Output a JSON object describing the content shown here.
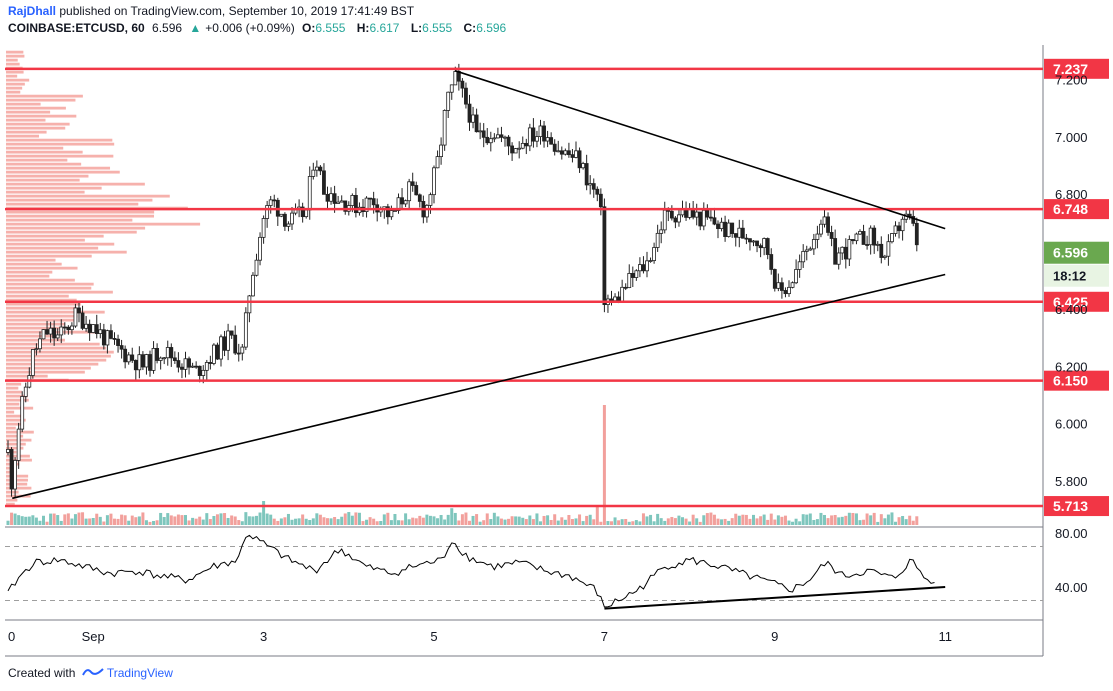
{
  "header": {
    "author": "RajDhall",
    "published": "published on TradingView.com, September 10, 2019 17:41:49 BST",
    "symbol": "COINBASE:ETCUSD, 60",
    "last": "6.596",
    "change_arrow": "▲",
    "change": "+0.006 (+0.09%)",
    "o_label": "O:",
    "o_value": "6.555",
    "h_label": "H:",
    "h_value": "6.617",
    "l_label": "L:",
    "l_value": "6.555",
    "c_label": "C:",
    "c_value": "6.596"
  },
  "footer": {
    "created_with": "Created with",
    "brand": "TradingView",
    "logo_icon": "tradingview-logo-icon"
  },
  "colors": {
    "up": "#26a69a",
    "down": "#ef5350",
    "level": "#f23645",
    "trend": "#000000",
    "last_tag": "#6aa84f",
    "volume_profile": "#f4a39e"
  },
  "chart_data": {
    "type": "candlestick",
    "symbol": "COINBASE:ETCUSD",
    "interval": "60",
    "ylim": [
      5.64,
      7.32
    ],
    "price_ticks": [
      "7.200",
      "7.000",
      "6.800",
      "6.400",
      "6.200",
      "6.000",
      "5.800"
    ],
    "x_ticks": [
      {
        "label": "0",
        "x": 0
      },
      {
        "label": "Sep",
        "x": 1
      },
      {
        "label": "3",
        "x": 3
      },
      {
        "label": "5",
        "x": 5
      },
      {
        "label": "7",
        "x": 7
      },
      {
        "label": "9",
        "x": 9
      },
      {
        "label": "11",
        "x": 11
      }
    ],
    "levels": [
      {
        "value": 7.237,
        "label": "7.237"
      },
      {
        "value": 6.748,
        "label": "6.748"
      },
      {
        "value": 6.425,
        "label": "6.425"
      },
      {
        "value": 6.15,
        "label": "6.150"
      },
      {
        "value": 5.713,
        "label": "5.713"
      }
    ],
    "last_price": {
      "value": 6.596,
      "label": "6.596",
      "countdown": "18:12"
    },
    "trendlines": [
      {
        "name": "upper",
        "from": [
          5.25,
          7.23
        ],
        "to": [
          11.0,
          6.68
        ]
      },
      {
        "name": "lower",
        "from": [
          0.05,
          5.74
        ],
        "to": [
          11.0,
          6.52
        ]
      }
    ],
    "price_path": [
      [
        0.0,
        5.9
      ],
      [
        0.05,
        5.78
      ],
      [
        0.1,
        5.95
      ],
      [
        0.2,
        6.12
      ],
      [
        0.3,
        6.25
      ],
      [
        0.45,
        6.32
      ],
      [
        0.6,
        6.3
      ],
      [
        0.8,
        6.38
      ],
      [
        1.0,
        6.34
      ],
      [
        1.2,
        6.28
      ],
      [
        1.4,
        6.24
      ],
      [
        1.6,
        6.2
      ],
      [
        1.8,
        6.26
      ],
      [
        2.0,
        6.22
      ],
      [
        2.2,
        6.18
      ],
      [
        2.4,
        6.24
      ],
      [
        2.6,
        6.3
      ],
      [
        2.75,
        6.25
      ],
      [
        2.85,
        6.5
      ],
      [
        3.0,
        6.72
      ],
      [
        3.1,
        6.78
      ],
      [
        3.3,
        6.7
      ],
      [
        3.5,
        6.74
      ],
      [
        3.6,
        6.95
      ],
      [
        3.7,
        6.82
      ],
      [
        3.9,
        6.78
      ],
      [
        4.1,
        6.76
      ],
      [
        4.3,
        6.78
      ],
      [
        4.5,
        6.72
      ],
      [
        4.7,
        6.82
      ],
      [
        4.9,
        6.74
      ],
      [
        5.05,
        6.92
      ],
      [
        5.15,
        7.12
      ],
      [
        5.25,
        7.2
      ],
      [
        5.4,
        7.1
      ],
      [
        5.5,
        7.0
      ],
      [
        5.7,
        7.02
      ],
      [
        5.9,
        6.96
      ],
      [
        6.1,
        7.0
      ],
      [
        6.3,
        7.02
      ],
      [
        6.5,
        6.95
      ],
      [
        6.7,
        6.92
      ],
      [
        6.85,
        6.82
      ],
      [
        6.95,
        6.78
      ],
      [
        7.0,
        6.44
      ],
      [
        7.1,
        6.42
      ],
      [
        7.3,
        6.5
      ],
      [
        7.5,
        6.56
      ],
      [
        7.7,
        6.72
      ],
      [
        7.9,
        6.74
      ],
      [
        8.1,
        6.72
      ],
      [
        8.3,
        6.7
      ],
      [
        8.5,
        6.66
      ],
      [
        8.7,
        6.66
      ],
      [
        8.9,
        6.62
      ],
      [
        9.05,
        6.45
      ],
      [
        9.2,
        6.5
      ],
      [
        9.4,
        6.62
      ],
      [
        9.55,
        6.72
      ],
      [
        9.7,
        6.58
      ],
      [
        9.9,
        6.62
      ],
      [
        10.1,
        6.66
      ],
      [
        10.3,
        6.58
      ],
      [
        10.5,
        6.72
      ],
      [
        10.6,
        6.7
      ],
      [
        10.7,
        6.6
      ]
    ],
    "volume_spikes": [
      {
        "x": 7.0,
        "value": 1.0
      },
      {
        "x": 6.9,
        "value": 0.15
      },
      {
        "x": 3.0,
        "value": 0.2
      },
      {
        "x": 5.2,
        "value": 0.14
      }
    ],
    "rsi": {
      "levels": [
        "80.00",
        "40.00"
      ],
      "upper_band": 70,
      "lower_band": 30,
      "path": [
        [
          0.0,
          35
        ],
        [
          0.1,
          45
        ],
        [
          0.3,
          58
        ],
        [
          0.6,
          60
        ],
        [
          0.9,
          55
        ],
        [
          1.2,
          50
        ],
        [
          1.5,
          52
        ],
        [
          1.8,
          48
        ],
        [
          2.1,
          45
        ],
        [
          2.4,
          55
        ],
        [
          2.7,
          60
        ],
        [
          2.8,
          80
        ],
        [
          3.0,
          72
        ],
        [
          3.3,
          60
        ],
        [
          3.6,
          52
        ],
        [
          3.9,
          68
        ],
        [
          4.2,
          55
        ],
        [
          4.5,
          50
        ],
        [
          4.8,
          56
        ],
        [
          5.1,
          60
        ],
        [
          5.2,
          75
        ],
        [
          5.4,
          62
        ],
        [
          5.7,
          55
        ],
        [
          6.0,
          58
        ],
        [
          6.3,
          52
        ],
        [
          6.6,
          48
        ],
        [
          6.9,
          38
        ],
        [
          7.0,
          25
        ],
        [
          7.1,
          28
        ],
        [
          7.4,
          38
        ],
        [
          7.7,
          55
        ],
        [
          8.0,
          60
        ],
        [
          8.3,
          56
        ],
        [
          8.6,
          50
        ],
        [
          9.0,
          42
        ],
        [
          9.2,
          38
        ],
        [
          9.4,
          45
        ],
        [
          9.6,
          58
        ],
        [
          9.8,
          48
        ],
        [
          10.1,
          52
        ],
        [
          10.4,
          46
        ],
        [
          10.6,
          60
        ],
        [
          10.8,
          44
        ],
        [
          10.9,
          47
        ]
      ],
      "trendline": {
        "from": [
          7.0,
          24
        ],
        "to": [
          11.0,
          40
        ]
      }
    }
  }
}
